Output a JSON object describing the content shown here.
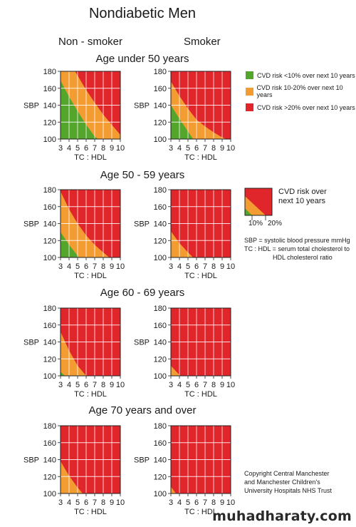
{
  "title": "Nondiabetic Men",
  "columns": [
    "Non - smoker",
    "Smoker"
  ],
  "legend": {
    "items": [
      {
        "label": "CVD risk <10% over next 10 years",
        "color": "#53a52b"
      },
      {
        "label": "CVD risk 10-20% over next 10 years",
        "color": "#f39c32"
      },
      {
        "label": "CVD risk >20% over next 10 years",
        "color": "#e0252b"
      }
    ],
    "mini_label": "CVD risk over next 10 years",
    "mini_ticks": [
      "10%",
      "20%"
    ],
    "abbrev_sbp": "SBP = systolic blood pressure mmHg",
    "abbrev_tc_line1": "TC : HDL = serum total cholesterol to",
    "abbrev_tc_line2": "HDL cholesterol ratio"
  },
  "copyright": [
    "Copyright Central Manchester",
    "and Manchester Children's",
    "University Hospitals NHS Trust"
  ],
  "watermark": "muhadharaty.com",
  "colors": {
    "green": "#53a52b",
    "orange": "#f39c32",
    "red": "#e0252b"
  },
  "chart_data": {
    "type": "heatmap",
    "x_label": "TC : HDL",
    "y_label": "SBP",
    "x_ticks": [
      3,
      4,
      5,
      6,
      7,
      8,
      9,
      10
    ],
    "y_ticks": [
      100,
      120,
      140,
      160,
      180
    ],
    "xlim": [
      3,
      10
    ],
    "ylim": [
      100,
      180
    ],
    "panels": [
      {
        "age_group": "Age under 50 years",
        "column": "Non - smoker",
        "boundary_10pct": [
          [
            3,
            169
          ],
          [
            4,
            150
          ],
          [
            5,
            133
          ],
          [
            6,
            117
          ],
          [
            7,
            103
          ],
          [
            7.4,
            100
          ]
        ],
        "boundary_20pct": [
          [
            4.7,
            180
          ],
          [
            5,
            175
          ],
          [
            6,
            158
          ],
          [
            7,
            143
          ],
          [
            8,
            129
          ],
          [
            9,
            117
          ],
          [
            10,
            105
          ]
        ]
      },
      {
        "age_group": "Age under 50 years",
        "column": "Smoker",
        "boundary_10pct": [
          [
            3,
            140
          ],
          [
            4,
            124
          ],
          [
            5,
            109
          ],
          [
            5.6,
            100
          ]
        ],
        "boundary_20pct": [
          [
            3,
            168
          ],
          [
            4,
            151
          ],
          [
            5,
            136
          ],
          [
            6,
            123
          ],
          [
            7,
            115
          ],
          [
            8,
            108
          ],
          [
            9,
            102
          ],
          [
            9.5,
            100
          ]
        ]
      },
      {
        "age_group": "Age 50 - 59 years",
        "column": "Non - smoker",
        "boundary_10pct": [
          [
            3,
            130
          ],
          [
            4,
            115
          ],
          [
            5,
            102
          ],
          [
            5.2,
            100
          ]
        ],
        "boundary_20pct": [
          [
            3,
            178
          ],
          [
            4,
            157
          ],
          [
            5,
            140
          ],
          [
            6,
            126
          ],
          [
            7,
            115
          ],
          [
            8,
            106
          ],
          [
            8.7,
            100
          ]
        ]
      },
      {
        "age_group": "Age 50 - 59 years",
        "column": "Smoker",
        "boundary_10pct": [],
        "boundary_20pct": [
          [
            3,
            131
          ],
          [
            4,
            117
          ],
          [
            5,
            106
          ],
          [
            5.6,
            100
          ]
        ]
      },
      {
        "age_group": "Age 60 - 69 years",
        "column": "Non - smoker",
        "boundary_10pct": [
          [
            3,
            105
          ],
          [
            3.5,
            100
          ]
        ],
        "boundary_20pct": [
          [
            3,
            152
          ],
          [
            4,
            130
          ],
          [
            5,
            112
          ],
          [
            6,
            100
          ]
        ]
      },
      {
        "age_group": "Age 60 - 69 years",
        "column": "Smoker",
        "boundary_10pct": [],
        "boundary_20pct": [
          [
            3,
            112
          ],
          [
            4,
            101
          ],
          [
            4.1,
            100
          ]
        ]
      },
      {
        "age_group": "Age 70 years and over",
        "column": "Non - smoker",
        "boundary_10pct": [],
        "boundary_20pct": [
          [
            3,
            138
          ],
          [
            4,
            121
          ],
          [
            5,
            107
          ],
          [
            5.6,
            100
          ]
        ]
      },
      {
        "age_group": "Age 70 years and over",
        "column": "Smoker",
        "boundary_10pct": [],
        "boundary_20pct": [
          [
            3,
            108
          ],
          [
            3.6,
            100
          ]
        ]
      }
    ]
  }
}
